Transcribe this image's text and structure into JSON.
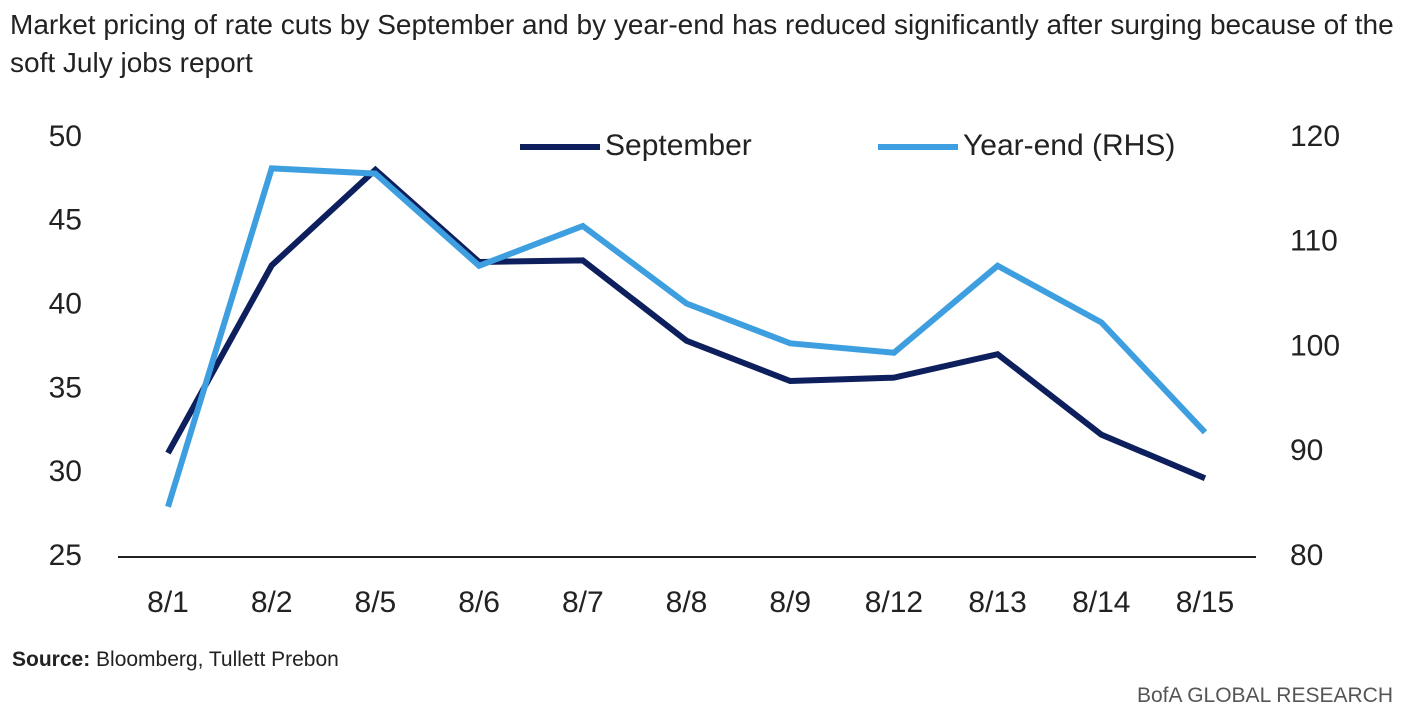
{
  "chart_data": {
    "type": "line",
    "subtitle": "Market pricing of rate cuts by September and by year-end has reduced significantly after surging because of the soft July jobs report",
    "categories": [
      "8/1",
      "8/2",
      "8/5",
      "8/6",
      "8/7",
      "8/8",
      "8/9",
      "8/12",
      "8/13",
      "8/14",
      "8/15"
    ],
    "series": [
      {
        "name": "September",
        "color": "#0d1f5c",
        "values": [
          31.2,
          42.4,
          48.1,
          42.6,
          42.7,
          37.9,
          35.5,
          35.7,
          37.1,
          32.3,
          29.7
        ]
      },
      {
        "name": "Year-end (RHS)",
        "color": "#3e9fe0",
        "axis": "y2",
        "values": [
          84.8,
          117.1,
          116.6,
          107.8,
          111.6,
          104.2,
          100.4,
          99.5,
          107.8,
          102.4,
          91.9
        ]
      }
    ],
    "ylim": [
      25,
      50
    ],
    "yticks": [
      25,
      30,
      35,
      40,
      45,
      50
    ],
    "y2lim": [
      80,
      120
    ],
    "y2ticks": [
      80,
      90,
      100,
      110,
      120
    ],
    "legend": "top",
    "source_label": "Source:",
    "source": "Bloomberg, Tullett Prebon",
    "footer": "BofA GLOBAL RESEARCH"
  }
}
